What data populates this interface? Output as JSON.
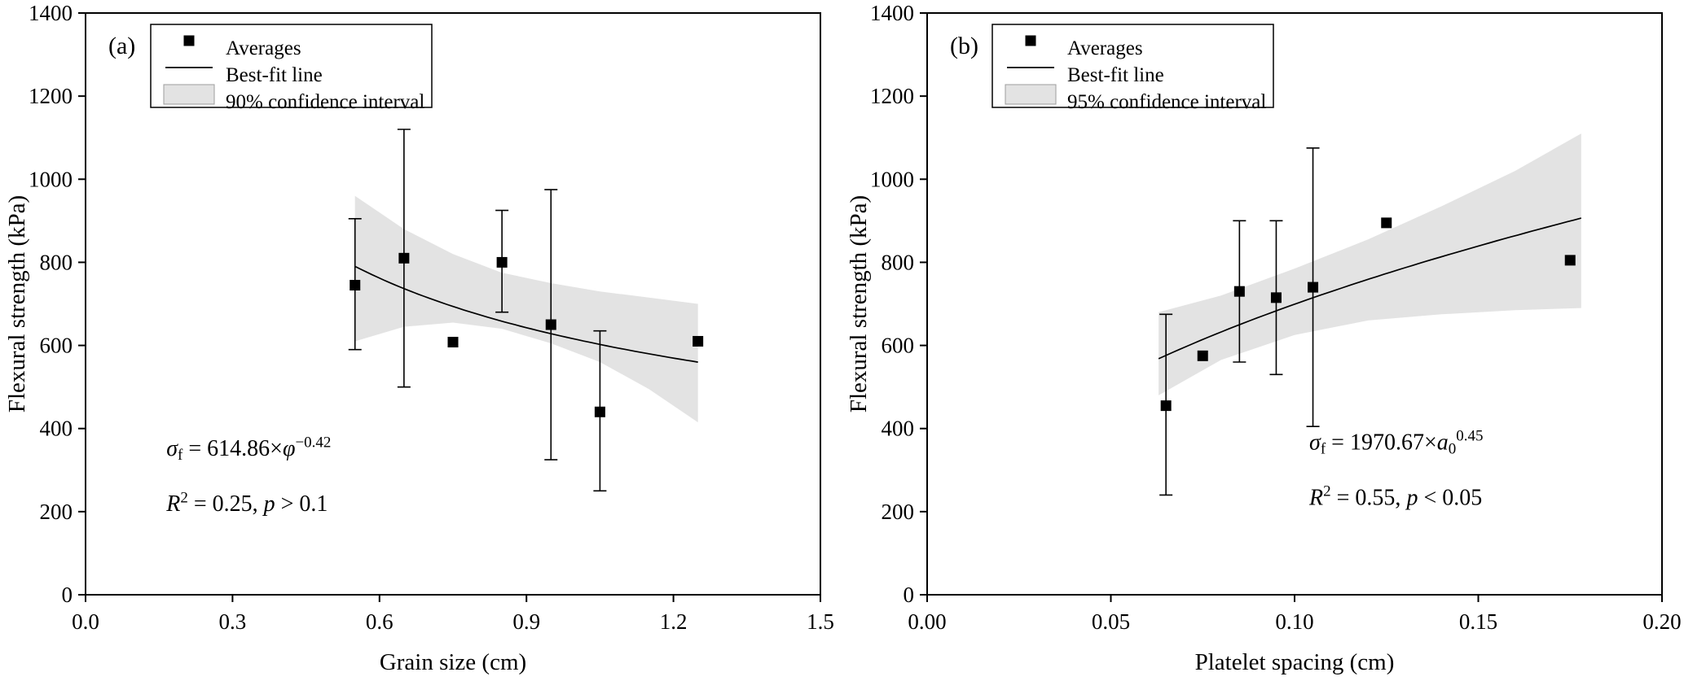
{
  "figure": {
    "background": "#ffffff",
    "colors": {
      "foreground": "#000000",
      "band_fill": "#e3e3e3",
      "band_edge": "#9c9c9c",
      "marker": "#000000",
      "fit_line": "#000000"
    }
  },
  "chart_data": [
    {
      "type": "scatter",
      "panel_label": "(a)",
      "xlabel": "Grain size (cm)",
      "ylabel": "Flexural strength (kPa)",
      "xlim": [
        0.0,
        1.5
      ],
      "ylim": [
        0,
        1400
      ],
      "xticks": [
        0.0,
        0.3,
        0.6,
        0.9,
        1.2,
        1.5
      ],
      "xtick_labels": [
        "0.0",
        "0.3",
        "0.6",
        "0.9",
        "1.2",
        "1.5"
      ],
      "yticks": [
        0,
        200,
        400,
        600,
        800,
        1000,
        1200,
        1400
      ],
      "ytick_labels": [
        "0",
        "200",
        "400",
        "600",
        "800",
        "1000",
        "1200",
        "1400"
      ],
      "grid": false,
      "legend": {
        "position": "top-left",
        "entries": [
          {
            "swatch": "marker",
            "label": "Averages"
          },
          {
            "swatch": "line",
            "label": "Best-fit line"
          },
          {
            "swatch": "band",
            "label": "90% confidence interval"
          }
        ]
      },
      "points": [
        {
          "x": 0.55,
          "y": 745,
          "err_low": 590,
          "err_high": 905
        },
        {
          "x": 0.65,
          "y": 810,
          "err_low": 500,
          "err_high": 1120
        },
        {
          "x": 0.75,
          "y": 608,
          "err_low": null,
          "err_high": null
        },
        {
          "x": 0.85,
          "y": 800,
          "err_low": 680,
          "err_high": 925
        },
        {
          "x": 0.95,
          "y": 650,
          "err_low": 325,
          "err_high": 975
        },
        {
          "x": 1.05,
          "y": 440,
          "err_low": 250,
          "err_high": 635
        },
        {
          "x": 1.25,
          "y": 610,
          "err_low": null,
          "err_high": null
        }
      ],
      "fit_line": {
        "model": "power",
        "coefficient": 614.86,
        "exponent": -0.42,
        "x_range": [
          0.55,
          1.25
        ]
      },
      "confidence_band": {
        "x": [
          0.55,
          0.65,
          0.75,
          0.85,
          0.95,
          1.05,
          1.15,
          1.25
        ],
        "upper": [
          960,
          880,
          820,
          775,
          750,
          730,
          715,
          700
        ],
        "lower": [
          610,
          645,
          655,
          640,
          605,
          560,
          495,
          415
        ]
      },
      "annotation": {
        "anchor": {
          "x": 0.165,
          "y": 335
        },
        "lines": [
          {
            "name": "equation",
            "segments": [
              {
                "text": "σ",
                "italic": true
              },
              {
                "text": "f",
                "baseline": "sub"
              },
              {
                "text": " = 614.86×"
              },
              {
                "text": "φ",
                "italic": true
              },
              {
                "text": "−0.42",
                "baseline": "super"
              }
            ]
          },
          {
            "name": "stats",
            "segments": [
              {
                "text": "R",
                "italic": true
              },
              {
                "text": "2",
                "baseline": "super"
              },
              {
                "text": " = 0.25, "
              },
              {
                "text": "p",
                "italic": true
              },
              {
                "text": " > 0.1"
              }
            ]
          }
        ]
      }
    },
    {
      "type": "scatter",
      "panel_label": "(b)",
      "xlabel": "Platelet spacing (cm)",
      "ylabel": "Flexural strength (kPa)",
      "xlim": [
        0.0,
        0.2
      ],
      "ylim": [
        0,
        1400
      ],
      "xticks": [
        0.0,
        0.05,
        0.1,
        0.15,
        0.2
      ],
      "xtick_labels": [
        "0.00",
        "0.05",
        "0.10",
        "0.15",
        "0.20"
      ],
      "yticks": [
        0,
        200,
        400,
        600,
        800,
        1000,
        1200,
        1400
      ],
      "ytick_labels": [
        "0",
        "200",
        "400",
        "600",
        "800",
        "1000",
        "1200",
        "1400"
      ],
      "grid": false,
      "legend": {
        "position": "top-left",
        "entries": [
          {
            "swatch": "marker",
            "label": "Averages"
          },
          {
            "swatch": "line",
            "label": "Best-fit line"
          },
          {
            "swatch": "band",
            "label": "95% confidence interval"
          }
        ]
      },
      "points": [
        {
          "x": 0.065,
          "y": 455,
          "err_low": 240,
          "err_high": 675
        },
        {
          "x": 0.075,
          "y": 575,
          "err_low": null,
          "err_high": null
        },
        {
          "x": 0.085,
          "y": 730,
          "err_low": 560,
          "err_high": 900
        },
        {
          "x": 0.095,
          "y": 715,
          "err_low": 530,
          "err_high": 900
        },
        {
          "x": 0.105,
          "y": 740,
          "err_low": 405,
          "err_high": 1075
        },
        {
          "x": 0.125,
          "y": 895,
          "err_low": null,
          "err_high": null
        },
        {
          "x": 0.175,
          "y": 805,
          "err_low": null,
          "err_high": null
        }
      ],
      "fit_line": {
        "model": "power",
        "coefficient": 1970.67,
        "exponent": 0.45,
        "x_range": [
          0.063,
          0.178
        ]
      },
      "confidence_band": {
        "x": [
          0.063,
          0.08,
          0.1,
          0.12,
          0.14,
          0.16,
          0.178
        ],
        "upper": [
          680,
          720,
          785,
          855,
          935,
          1020,
          1110
        ],
        "lower": [
          480,
          565,
          625,
          660,
          675,
          685,
          690
        ]
      },
      "annotation": {
        "anchor": {
          "x": 0.104,
          "y": 350
        },
        "lines": [
          {
            "name": "equation",
            "segments": [
              {
                "text": "σ",
                "italic": true
              },
              {
                "text": "f",
                "baseline": "sub"
              },
              {
                "text": " = 1970.67×"
              },
              {
                "text": "a",
                "italic": true
              },
              {
                "text": "0",
                "baseline": "sub"
              },
              {
                "text": "0.45",
                "baseline": "super"
              }
            ]
          },
          {
            "name": "stats",
            "segments": [
              {
                "text": "R",
                "italic": true
              },
              {
                "text": "2",
                "baseline": "super"
              },
              {
                "text": " = 0.55, "
              },
              {
                "text": "p",
                "italic": true
              },
              {
                "text": " < 0.05"
              }
            ]
          }
        ]
      }
    }
  ]
}
